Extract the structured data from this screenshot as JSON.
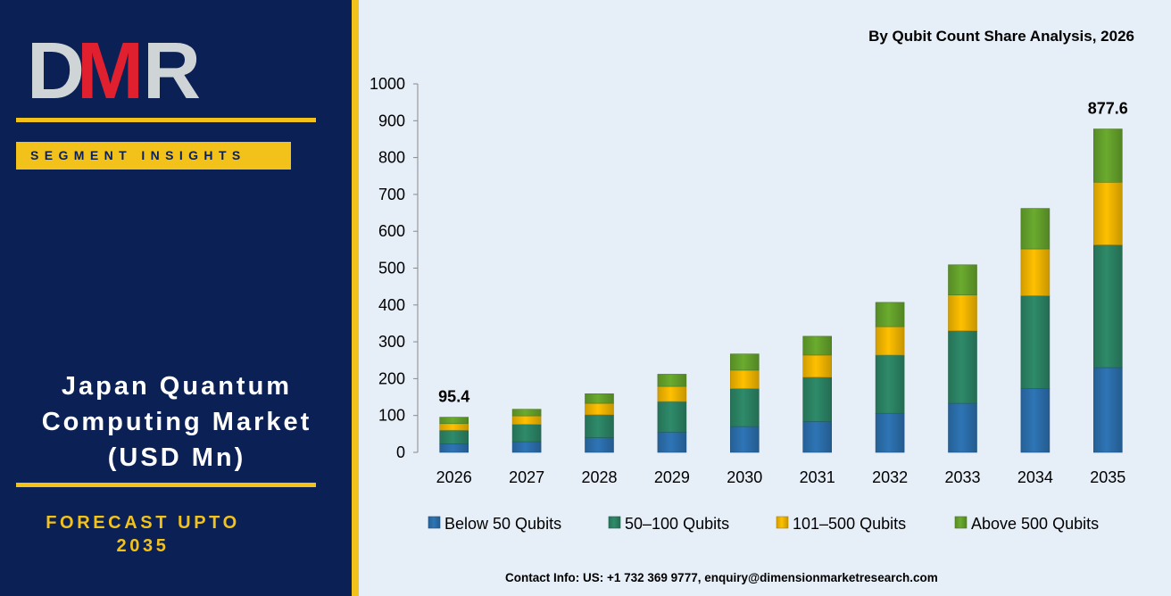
{
  "brand": {
    "logo_letters": [
      "D",
      "M",
      "R"
    ]
  },
  "left_panel": {
    "badge": "SEGMENT INSIGHTS",
    "title_lines": [
      "Japan Quantum",
      "Computing Market",
      "(USD Mn)"
    ],
    "forecast_lines": [
      "FORECAST UPTO",
      "2035"
    ]
  },
  "contact": "Contact Info: US: +1 732 369 9777, enquiry@dimensionmarketresearch.com",
  "colors": {
    "navy": "#0b2055",
    "gold": "#f2c21b",
    "logo_red": "#e0202f",
    "logo_gray": "#cfd4d6",
    "chart_bg": "#e6eef8"
  },
  "chart_data": {
    "type": "bar",
    "stacked": true,
    "title": "By Qubit Count Share Analysis, 2026",
    "xlabel": "",
    "ylabel": "",
    "ylim": [
      0,
      1000
    ],
    "yticks": [
      0,
      100,
      200,
      300,
      400,
      500,
      600,
      700,
      800,
      900,
      1000
    ],
    "categories": [
      "2026",
      "2027",
      "2028",
      "2029",
      "2030",
      "2031",
      "2032",
      "2033",
      "2034",
      "2035"
    ],
    "series": [
      {
        "name": "Below 50 Qubits",
        "color": "#2e75b6",
        "values": [
          23,
          29,
          40,
          55,
          70,
          84,
          106,
          133,
          173,
          230
        ]
      },
      {
        "name": "50–100 Qubits",
        "color": "#2e8b6a",
        "values": [
          37,
          47,
          62,
          83,
          103,
          120,
          158,
          197,
          252,
          333
        ]
      },
      {
        "name": "101–500 Qubits",
        "color": "#ffc000",
        "values": [
          18,
          23,
          31,
          41,
          50,
          60,
          77,
          97,
          127,
          170
        ]
      },
      {
        "name": "Above 500 Qubits",
        "color": "#6aab2e",
        "values": [
          17.4,
          18,
          26,
          33,
          44,
          51,
          66,
          82,
          110,
          144.6
        ]
      }
    ],
    "data_labels": [
      {
        "category": "2026",
        "text": "95.4"
      },
      {
        "category": "2035",
        "text": "877.6"
      }
    ],
    "legend_position": "bottom",
    "grid": false
  }
}
